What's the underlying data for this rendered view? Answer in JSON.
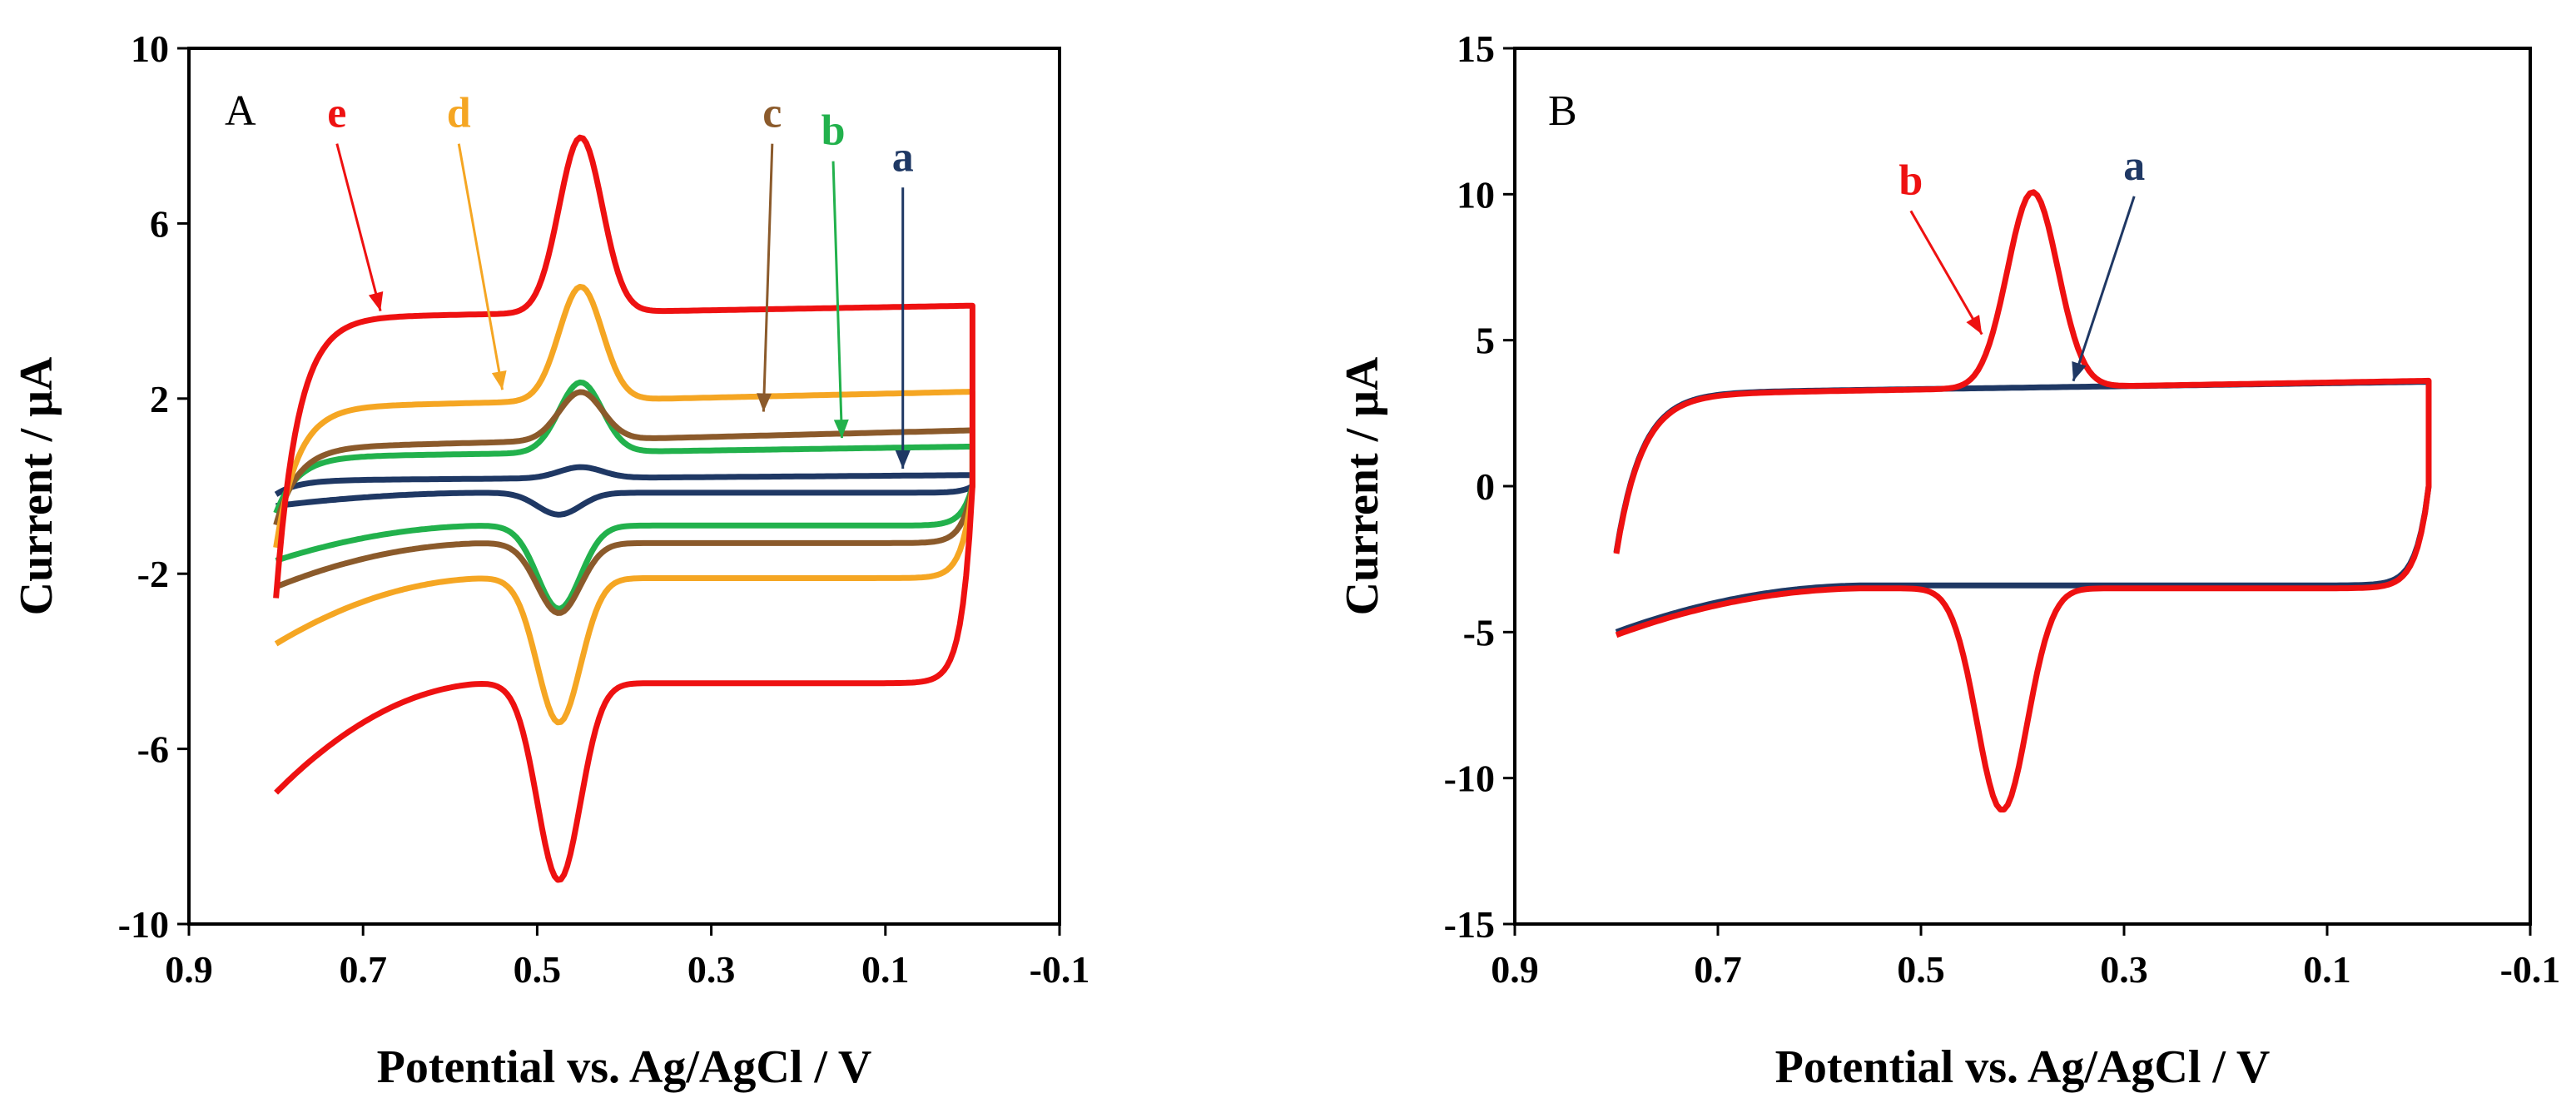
{
  "chart_data": [
    {
      "type": "line",
      "panel": "A",
      "xlabel": "Potential vs. Ag/AgCl / V",
      "ylabel": "Current / μA",
      "xlim": [
        0.9,
        -0.1
      ],
      "ylim": [
        -10,
        10
      ],
      "xticks": [
        0.9,
        0.7,
        0.5,
        0.3,
        0.1,
        -0.1
      ],
      "xtick_labels": [
        "0.9",
        "0.7",
        "0.5",
        "0.3",
        "0.1",
        "-0.1"
      ],
      "yticks": [
        10,
        6,
        2,
        -2,
        -6,
        -10
      ],
      "ytick_labels": [
        "10",
        "6",
        "2",
        "-2",
        "-6",
        "-10"
      ],
      "peak_anodic_potential": 0.45,
      "peak_cathodic_potential": 0.475,
      "series": [
        {
          "name": "a",
          "color": "#1f3864",
          "anodic_base": 0.2,
          "anodic_slope": 0.3,
          "anodic_peak": 0.25,
          "cathodic_base": -0.15,
          "cathodic_slope": 0.3,
          "cathodic_peak": -0.5,
          "arrow_target": [
            0.08,
            0.4
          ],
          "label_pos": [
            0.08,
            7.2
          ]
        },
        {
          "name": "b",
          "color": "#22b14c",
          "anodic_base": 0.8,
          "anodic_slope": 0.6,
          "anodic_peak": 1.6,
          "cathodic_base": -0.9,
          "cathodic_slope": 0.8,
          "cathodic_peak": -1.9,
          "arrow_target": [
            0.15,
            1.1
          ],
          "label_pos": [
            0.16,
            7.8
          ]
        },
        {
          "name": "c",
          "color": "#8b5a2b",
          "anodic_base": 1.1,
          "anodic_slope": 1.0,
          "anodic_peak": 1.1,
          "cathodic_base": -1.3,
          "cathodic_slope": 1.0,
          "cathodic_peak": -1.6,
          "arrow_target": [
            0.24,
            1.7
          ],
          "label_pos": [
            0.23,
            8.2
          ]
        },
        {
          "name": "d",
          "color": "#f5a623",
          "anodic_base": 2.0,
          "anodic_slope": 0.9,
          "anodic_peak": 2.6,
          "cathodic_base": -2.1,
          "cathodic_slope": 1.5,
          "cathodic_peak": -3.3,
          "arrow_target": [
            0.54,
            2.2
          ],
          "label_pos": [
            0.59,
            8.2
          ]
        },
        {
          "name": "e",
          "color": "#ee1111",
          "anodic_base": 4.0,
          "anodic_slope": 0.7,
          "anodic_peak": 4.0,
          "cathodic_base": -4.5,
          "cathodic_slope": 2.5,
          "cathodic_peak": -4.5,
          "arrow_target": [
            0.68,
            4.0
          ],
          "label_pos": [
            0.73,
            8.2
          ]
        }
      ]
    },
    {
      "type": "line",
      "panel": "B",
      "xlabel": "Potential vs. Ag/AgCl / V",
      "ylabel": "Current / μA",
      "xlim": [
        0.9,
        -0.1
      ],
      "ylim": [
        -15,
        15
      ],
      "xticks": [
        0.9,
        0.7,
        0.5,
        0.3,
        0.1,
        -0.1
      ],
      "xtick_labels": [
        "0.9",
        "0.7",
        "0.5",
        "0.3",
        "0.1",
        "-0.1"
      ],
      "yticks": [
        15,
        10,
        5,
        0,
        -5,
        -10,
        -15
      ],
      "ytick_labels": [
        "15",
        "10",
        "5",
        "0",
        "-5",
        "-10",
        "-15"
      ],
      "peak_anodic_potential": 0.39,
      "peak_cathodic_potential": 0.42,
      "series": [
        {
          "name": "a",
          "color": "#1f3864",
          "anodic_base": 3.4,
          "anodic_slope": 1.0,
          "anodic_peak": 0.0,
          "cathodic_base": -3.4,
          "cathodic_slope": 1.6,
          "cathodic_peak": 0.0,
          "arrow_target": [
            0.35,
            3.6
          ],
          "label_pos": [
            0.29,
            10.5
          ]
        },
        {
          "name": "b",
          "color": "#ee1111",
          "anodic_base": 3.4,
          "anodic_slope": 1.2,
          "anodic_peak": 6.7,
          "cathodic_base": -3.5,
          "cathodic_slope": 1.6,
          "cathodic_peak": -7.6,
          "arrow_target": [
            0.44,
            5.2
          ],
          "label_pos": [
            0.51,
            10.0
          ]
        }
      ]
    }
  ]
}
